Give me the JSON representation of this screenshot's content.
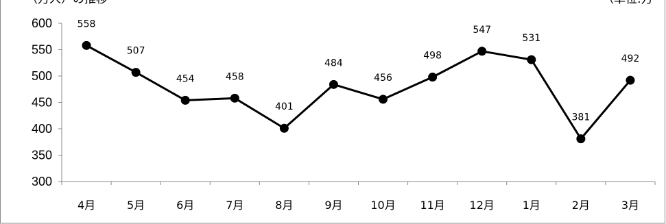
{
  "header": {
    "title_fragment": "（万人）の推移",
    "unit_fragment": "（単位:万"
  },
  "chart_data": {
    "type": "line",
    "categories": [
      "4月",
      "5月",
      "6月",
      "7月",
      "8月",
      "9月",
      "10月",
      "11月",
      "12月",
      "1月",
      "2月",
      "3月"
    ],
    "series": [
      {
        "values": [
          558,
          507,
          454,
          458,
          401,
          484,
          456,
          498,
          547,
          531,
          381,
          492
        ]
      }
    ],
    "yticks": [
      "300",
      "350",
      "400",
      "450",
      "500",
      "550",
      "600"
    ],
    "ylim": [
      300,
      600
    ],
    "grid": false,
    "legend": "none",
    "line_color": "#000000",
    "marker_color": "#000000"
  }
}
